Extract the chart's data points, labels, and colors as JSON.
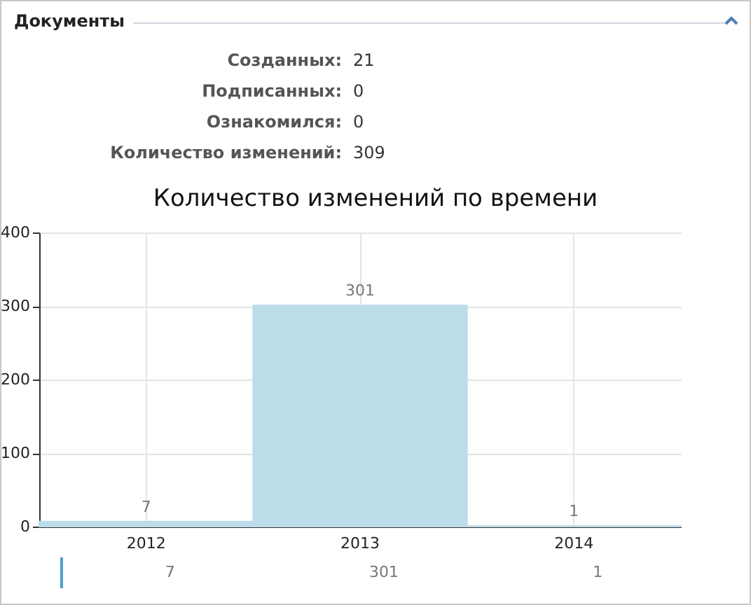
{
  "chart_data": {
    "type": "bar",
    "title": "Количество изменений по времени",
    "annotations": [
      "Документы",
      "Созданных: 21",
      "Подписанных: 0",
      "Ознакомился: 0",
      "Количество изменений: 309"
    ],
    "categories": [
      "2012",
      "2013",
      "2014"
    ],
    "values": [
      7,
      301,
      1
    ],
    "color": "#bcdcea",
    "ylim": [
      0,
      400
    ],
    "yticks": [
      0,
      100,
      200,
      300,
      400
    ],
    "value_labels": [
      "7",
      "301",
      "1"
    ],
    "grid": true
  }
}
